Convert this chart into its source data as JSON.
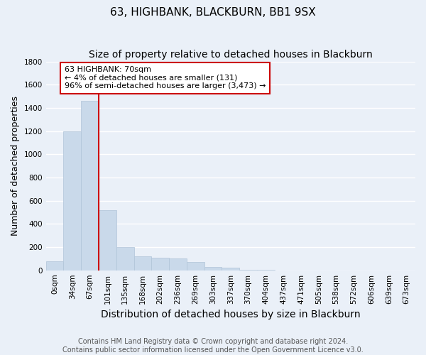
{
  "title": "63, HIGHBANK, BLACKBURN, BB1 9SX",
  "subtitle": "Size of property relative to detached houses in Blackburn",
  "xlabel": "Distribution of detached houses by size in Blackburn",
  "ylabel": "Number of detached properties",
  "bar_color": "#c9d9ea",
  "bar_edge_color": "#b0c4d8",
  "background_color": "#eaf0f8",
  "grid_color": "#ffffff",
  "categories": [
    "0sqm",
    "34sqm",
    "67sqm",
    "101sqm",
    "135sqm",
    "168sqm",
    "202sqm",
    "236sqm",
    "269sqm",
    "303sqm",
    "337sqm",
    "370sqm",
    "404sqm",
    "437sqm",
    "471sqm",
    "505sqm",
    "538sqm",
    "572sqm",
    "606sqm",
    "639sqm",
    "673sqm"
  ],
  "bar_heights": [
    80,
    1200,
    1460,
    520,
    200,
    120,
    110,
    100,
    70,
    30,
    20,
    5,
    5,
    0,
    0,
    0,
    0,
    0,
    0,
    0,
    0
  ],
  "ylim": [
    0,
    1800
  ],
  "yticks": [
    0,
    200,
    400,
    600,
    800,
    1000,
    1200,
    1400,
    1600,
    1800
  ],
  "property_line_x": 2.5,
  "annotation_text": "63 HIGHBANK: 70sqm\n← 4% of detached houses are smaller (131)\n96% of semi-detached houses are larger (3,473) →",
  "annotation_box_color": "#ffffff",
  "annotation_box_edge": "#cc0000",
  "vline_color": "#cc0000",
  "footer_line1": "Contains HM Land Registry data © Crown copyright and database right 2024.",
  "footer_line2": "Contains public sector information licensed under the Open Government Licence v3.0.",
  "title_fontsize": 11,
  "subtitle_fontsize": 10,
  "axis_label_fontsize": 9,
  "tick_fontsize": 7.5,
  "annotation_fontsize": 8,
  "footer_fontsize": 7
}
